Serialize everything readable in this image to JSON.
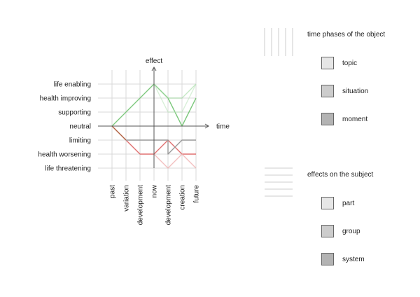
{
  "chart_data": {
    "type": "line",
    "ylabel": "effect",
    "xlabel": "time",
    "y_levels": [
      "life enabling",
      "health improving",
      "supporting",
      "neutral",
      "limiting",
      "health worsening",
      "life threatening"
    ],
    "x_ticks": [
      "past",
      "variation",
      "development",
      "now",
      "development",
      "creation",
      "future"
    ],
    "series": [
      {
        "color": "#7dc87d",
        "opacity": 1.0,
        "points": [
          [
            0,
            3
          ],
          [
            3,
            0
          ],
          [
            4,
            1
          ],
          [
            5,
            3
          ],
          [
            6,
            1
          ]
        ]
      },
      {
        "color": "#9fd89f",
        "opacity": 0.6,
        "points": [
          [
            3,
            0
          ],
          [
            4,
            1
          ],
          [
            5,
            1
          ],
          [
            6,
            0
          ]
        ]
      },
      {
        "color": "#bfe6bf",
        "opacity": 0.6,
        "points": [
          [
            3,
            0
          ],
          [
            4,
            2
          ],
          [
            5,
            2
          ],
          [
            6,
            0
          ]
        ]
      },
      {
        "color": "#b06040",
        "opacity": 1.0,
        "points": [
          [
            0,
            3
          ],
          [
            1,
            4
          ]
        ]
      },
      {
        "color": "#e07070",
        "opacity": 1.0,
        "points": [
          [
            1,
            4
          ],
          [
            2,
            5
          ],
          [
            3,
            5
          ],
          [
            4,
            4
          ],
          [
            5,
            5
          ],
          [
            6,
            5
          ]
        ]
      },
      {
        "color": "#999999",
        "opacity": 1.0,
        "points": [
          [
            1,
            4
          ],
          [
            3,
            4
          ],
          [
            4,
            4
          ],
          [
            4,
            5
          ],
          [
            5,
            4
          ],
          [
            6,
            4
          ]
        ]
      },
      {
        "color": "#f0b0b0",
        "opacity": 0.8,
        "points": [
          [
            3,
            5
          ],
          [
            4,
            6
          ],
          [
            5,
            5
          ],
          [
            6,
            6
          ]
        ]
      }
    ]
  },
  "legend_time": {
    "title": "time phases of the object",
    "items": [
      {
        "label": "topic",
        "color": "#e6e6e6"
      },
      {
        "label": "situation",
        "color": "#cccccc"
      },
      {
        "label": "moment",
        "color": "#b3b3b3"
      }
    ]
  },
  "legend_effects": {
    "title": "effects on the subject",
    "items": [
      {
        "label": "part",
        "color": "#e6e6e6"
      },
      {
        "label": "group",
        "color": "#cccccc"
      },
      {
        "label": "system",
        "color": "#b3b3b3"
      }
    ]
  }
}
